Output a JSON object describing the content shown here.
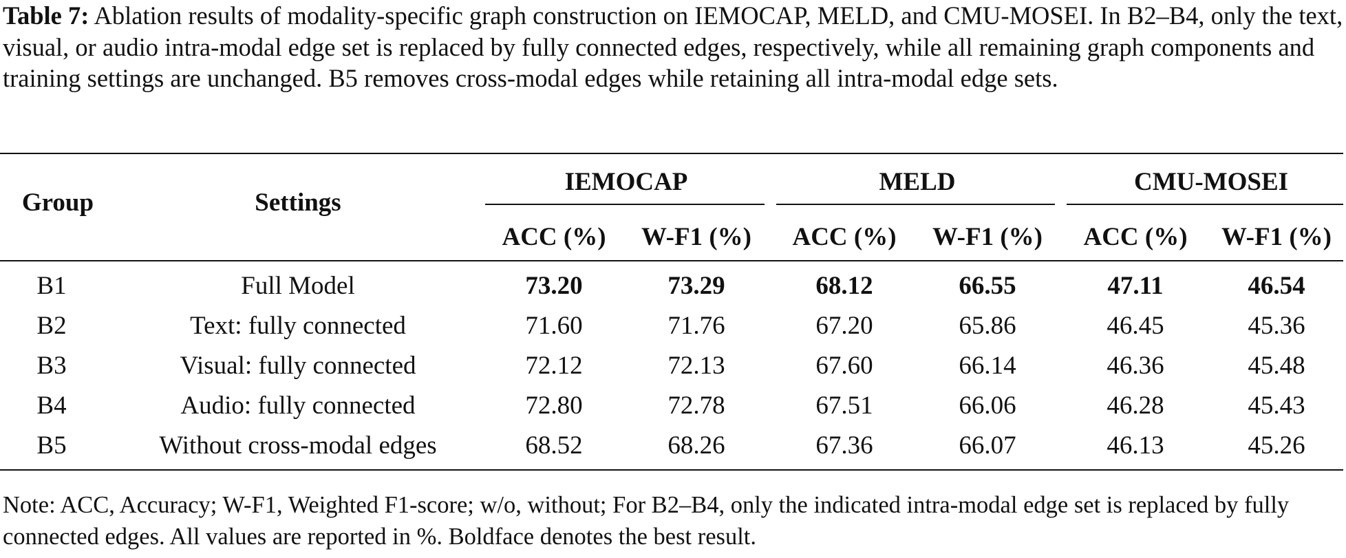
{
  "caption": {
    "label": "Table 7:",
    "text": "Ablation results of modality-specific graph construction on IEMOCAP, MELD, and CMU-MOSEI. In B2–B4, only the text, visual, or audio intra-modal edge set is replaced by fully connected edges, respectively, while all remaining graph components and training settings are unchanged. B5 removes cross-modal edges while retaining all intra-modal edge sets."
  },
  "header": {
    "group": "Group",
    "settings": "Settings",
    "datasets": [
      "IEMOCAP",
      "MELD",
      "CMU-MOSEI"
    ],
    "metrics": [
      "ACC (%)",
      "W-F1 (%)",
      "ACC (%)",
      "W-F1 (%)",
      "ACC (%)",
      "W-F1 (%)"
    ]
  },
  "rows": [
    {
      "group": "B1",
      "setting": "Full Model",
      "values": [
        "73.20",
        "73.29",
        "68.12",
        "66.55",
        "47.11",
        "46.54"
      ],
      "bold": true
    },
    {
      "group": "B2",
      "setting": "Text: fully connected",
      "values": [
        "71.60",
        "71.76",
        "67.20",
        "65.86",
        "46.45",
        "45.36"
      ],
      "bold": false
    },
    {
      "group": "B3",
      "setting": "Visual: fully connected",
      "values": [
        "72.12",
        "72.13",
        "67.60",
        "66.14",
        "46.36",
        "45.48"
      ],
      "bold": false
    },
    {
      "group": "B4",
      "setting": "Audio: fully connected",
      "values": [
        "72.80",
        "72.78",
        "67.51",
        "66.06",
        "46.28",
        "45.43"
      ],
      "bold": false
    },
    {
      "group": "B5",
      "setting": "Without cross-modal edges",
      "values": [
        "68.52",
        "68.26",
        "67.36",
        "66.07",
        "46.13",
        "45.26"
      ],
      "bold": false
    }
  ],
  "note": "Note: ACC, Accuracy; W-F1, Weighted F1-score; w/o, without; For B2–B4, only the indicated intra-modal edge set is replaced by fully connected edges. All values are reported in %. Boldface denotes the best result."
}
